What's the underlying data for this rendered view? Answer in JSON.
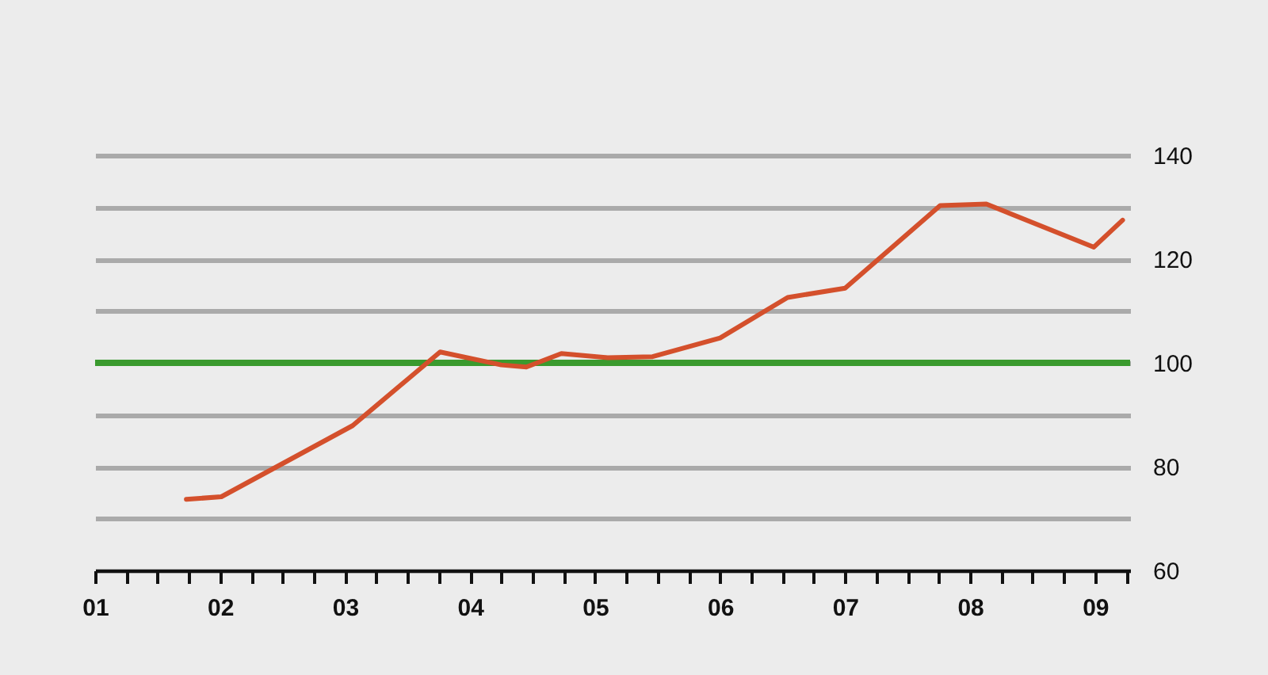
{
  "chart_data": {
    "type": "line",
    "x": [
      2001.73,
      2002.01,
      2003.06,
      2003.76,
      2004.25,
      2004.45,
      2004.73,
      2005.1,
      2005.46,
      2006.0,
      2006.54,
      2007.0,
      2007.76,
      2008.13,
      2008.99,
      2009.22
    ],
    "series": [
      {
        "color": "#d4502c",
        "values": [
          73.7,
          74.2,
          87.9,
          102.1,
          99.6,
          99.2,
          101.8,
          101.0,
          101.2,
          104.8,
          112.6,
          114.4,
          130.3,
          130.6,
          122.3,
          127.5
        ]
      }
    ],
    "xlim": [
      2001,
      2009.28
    ],
    "xticks": [
      {
        "value": 2001,
        "label": "01"
      },
      {
        "value": 2001.25,
        "label": null
      },
      {
        "value": 2001.5,
        "label": null
      },
      {
        "value": 2001.75,
        "label": null
      },
      {
        "value": 2002,
        "label": "02"
      },
      {
        "value": 2002.25,
        "label": null
      },
      {
        "value": 2002.5,
        "label": null
      },
      {
        "value": 2002.75,
        "label": null
      },
      {
        "value": 2003,
        "label": "03"
      },
      {
        "value": 2003.25,
        "label": null
      },
      {
        "value": 2003.5,
        "label": null
      },
      {
        "value": 2003.75,
        "label": null
      },
      {
        "value": 2004,
        "label": "04"
      },
      {
        "value": 2004.25,
        "label": null
      },
      {
        "value": 2004.5,
        "label": null
      },
      {
        "value": 2004.75,
        "label": null
      },
      {
        "value": 2005,
        "label": "05"
      },
      {
        "value": 2005.25,
        "label": null
      },
      {
        "value": 2005.5,
        "label": null
      },
      {
        "value": 2005.75,
        "label": null
      },
      {
        "value": 2006,
        "label": "06"
      },
      {
        "value": 2006.25,
        "label": null
      },
      {
        "value": 2006.5,
        "label": null
      },
      {
        "value": 2006.75,
        "label": null
      },
      {
        "value": 2007,
        "label": "07"
      },
      {
        "value": 2007.25,
        "label": null
      },
      {
        "value": 2007.5,
        "label": null
      },
      {
        "value": 2007.75,
        "label": null
      },
      {
        "value": 2008,
        "label": "08"
      },
      {
        "value": 2008.25,
        "label": null
      },
      {
        "value": 2008.5,
        "label": null
      },
      {
        "value": 2008.75,
        "label": null
      },
      {
        "value": 2009,
        "label": "09"
      },
      {
        "value": 2009.25,
        "label": null
      }
    ],
    "ylim": [
      60,
      140
    ],
    "yticks": [
      60,
      {
        "value": 70,
        "label": null
      },
      80,
      {
        "value": 90,
        "label": null
      },
      100,
      {
        "value": 110,
        "label": null
      },
      120,
      {
        "value": 130,
        "label": null
      },
      140
    ],
    "grid": "y",
    "ref_lines": [
      {
        "axis": "y",
        "value": 100,
        "label": null,
        "color": "#3a9a2e"
      }
    ],
    "line_style": "solid",
    "marker": "none"
  }
}
